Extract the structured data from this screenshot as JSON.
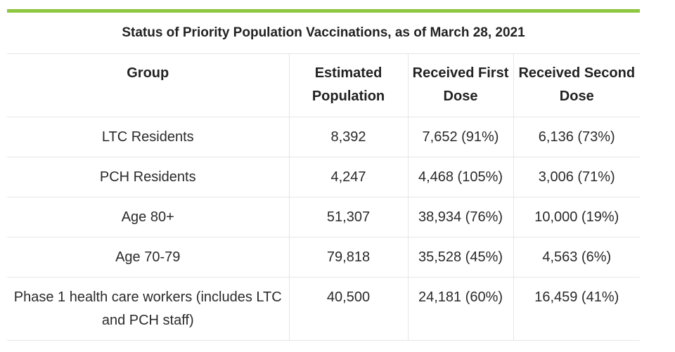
{
  "table": {
    "title": "Status of Priority Population Vaccinations, as of March 28, 2021",
    "headers": [
      "Group",
      "Estimated Population",
      "Received First Dose",
      "Received Second Dose"
    ],
    "rows": [
      [
        "LTC Residents",
        "8,392",
        "7,652 (91%)",
        "6,136 (73%)"
      ],
      [
        "PCH Residents",
        "4,247",
        "4,468 (105%)",
        "3,006 (71%)"
      ],
      [
        "Age 80+",
        "51,307",
        "38,934 (76%)",
        "10,000 (19%)"
      ],
      [
        "Age 70-79",
        "79,818",
        "35,528 (45%)",
        "4,563 (6%)"
      ],
      [
        "Phase 1 health care workers (includes LTC and PCH staff)",
        "40,500",
        "24,181 (60%)",
        "16,459 (41%)"
      ]
    ]
  },
  "colors": {
    "accent_bar": "#8dc63f",
    "grid_line": "#e6e6e6",
    "text": "#222222"
  }
}
